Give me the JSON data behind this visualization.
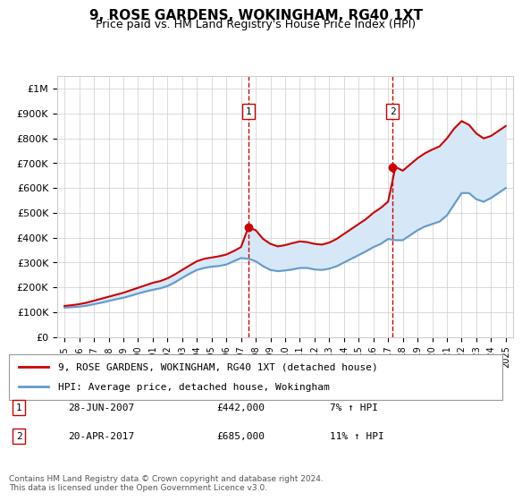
{
  "title": "9, ROSE GARDENS, WOKINGHAM, RG40 1XT",
  "subtitle": "Price paid vs. HM Land Registry's House Price Index (HPI)",
  "legend_line1": "9, ROSE GARDENS, WOKINGHAM, RG40 1XT (detached house)",
  "legend_line2": "HPI: Average price, detached house, Wokingham",
  "sale1_label": "1",
  "sale1_date": "28-JUN-2007",
  "sale1_price": "£442,000",
  "sale1_hpi": "7% ↑ HPI",
  "sale1_year": 2007.5,
  "sale1_value": 442000,
  "sale2_label": "2",
  "sale2_date": "20-APR-2017",
  "sale2_price": "£685,000",
  "sale2_hpi": "11% ↑ HPI",
  "sale2_year": 2017.3,
  "sale2_value": 685000,
  "footnote": "Contains HM Land Registry data © Crown copyright and database right 2024.\nThis data is licensed under the Open Government Licence v3.0.",
  "line_red": "#cc0000",
  "line_blue": "#6699cc",
  "fill_color": "#d6e8f7",
  "background_color": "#ffffff",
  "grid_color": "#cccccc",
  "ylim": [
    0,
    1050000
  ],
  "xlim": [
    1994.5,
    2025.5
  ],
  "yticks": [
    0,
    100000,
    200000,
    300000,
    400000,
    500000,
    600000,
    700000,
    800000,
    900000,
    1000000
  ],
  "ytick_labels": [
    "£0",
    "£100K",
    "£200K",
    "£300K",
    "£400K",
    "£500K",
    "£600K",
    "£700K",
    "£800K",
    "£900K",
    "£1M"
  ],
  "xticks": [
    1995,
    1996,
    1997,
    1998,
    1999,
    2000,
    2001,
    2002,
    2003,
    2004,
    2005,
    2006,
    2007,
    2008,
    2009,
    2010,
    2011,
    2012,
    2013,
    2014,
    2015,
    2016,
    2017,
    2018,
    2019,
    2020,
    2021,
    2022,
    2023,
    2024,
    2025
  ],
  "hpi_years": [
    1995,
    1995.5,
    1996,
    1996.5,
    1997,
    1997.5,
    1998,
    1998.5,
    1999,
    1999.5,
    2000,
    2000.5,
    2001,
    2001.5,
    2002,
    2002.5,
    2003,
    2003.5,
    2004,
    2004.5,
    2005,
    2005.5,
    2006,
    2006.5,
    2007,
    2007.5,
    2008,
    2008.5,
    2009,
    2009.5,
    2010,
    2010.5,
    2011,
    2011.5,
    2012,
    2012.5,
    2013,
    2013.5,
    2014,
    2014.5,
    2015,
    2015.5,
    2016,
    2016.5,
    2017,
    2017.5,
    2018,
    2018.5,
    2019,
    2019.5,
    2020,
    2020.5,
    2021,
    2021.5,
    2022,
    2022.5,
    2023,
    2023.5,
    2024,
    2024.5,
    2025
  ],
  "hpi_values": [
    118000,
    120000,
    122000,
    126000,
    132000,
    138000,
    145000,
    152000,
    158000,
    166000,
    175000,
    183000,
    190000,
    196000,
    205000,
    220000,
    238000,
    255000,
    270000,
    278000,
    283000,
    286000,
    292000,
    305000,
    318000,
    315000,
    305000,
    285000,
    270000,
    265000,
    268000,
    272000,
    278000,
    278000,
    272000,
    270000,
    275000,
    285000,
    300000,
    315000,
    330000,
    345000,
    362000,
    375000,
    395000,
    390000,
    390000,
    410000,
    430000,
    445000,
    455000,
    465000,
    490000,
    535000,
    580000,
    580000,
    555000,
    545000,
    560000,
    580000,
    600000
  ],
  "red_years": [
    1995,
    1995.5,
    1996,
    1996.5,
    1997,
    1997.5,
    1998,
    1998.5,
    1999,
    1999.5,
    2000,
    2000.5,
    2001,
    2001.5,
    2002,
    2002.5,
    2003,
    2003.5,
    2004,
    2004.5,
    2005,
    2005.5,
    2006,
    2006.5,
    2007,
    2007.5,
    2008,
    2008.5,
    2009,
    2009.5,
    2010,
    2010.5,
    2011,
    2011.5,
    2012,
    2012.5,
    2013,
    2013.5,
    2014,
    2014.5,
    2015,
    2015.5,
    2016,
    2016.5,
    2017,
    2017.5,
    2018,
    2018.5,
    2019,
    2019.5,
    2020,
    2020.5,
    2021,
    2021.5,
    2022,
    2022.5,
    2023,
    2023.5,
    2024,
    2024.5,
    2025
  ],
  "red_values": [
    125000,
    128000,
    132000,
    138000,
    146000,
    154000,
    162000,
    170000,
    178000,
    188000,
    198000,
    208000,
    218000,
    225000,
    236000,
    252000,
    270000,
    288000,
    305000,
    315000,
    320000,
    325000,
    332000,
    346000,
    362000,
    442000,
    430000,
    395000,
    375000,
    365000,
    370000,
    378000,
    385000,
    382000,
    375000,
    372000,
    380000,
    395000,
    415000,
    435000,
    455000,
    475000,
    500000,
    520000,
    545000,
    685000,
    670000,
    695000,
    720000,
    740000,
    755000,
    768000,
    800000,
    840000,
    870000,
    855000,
    820000,
    800000,
    810000,
    830000,
    850000
  ]
}
